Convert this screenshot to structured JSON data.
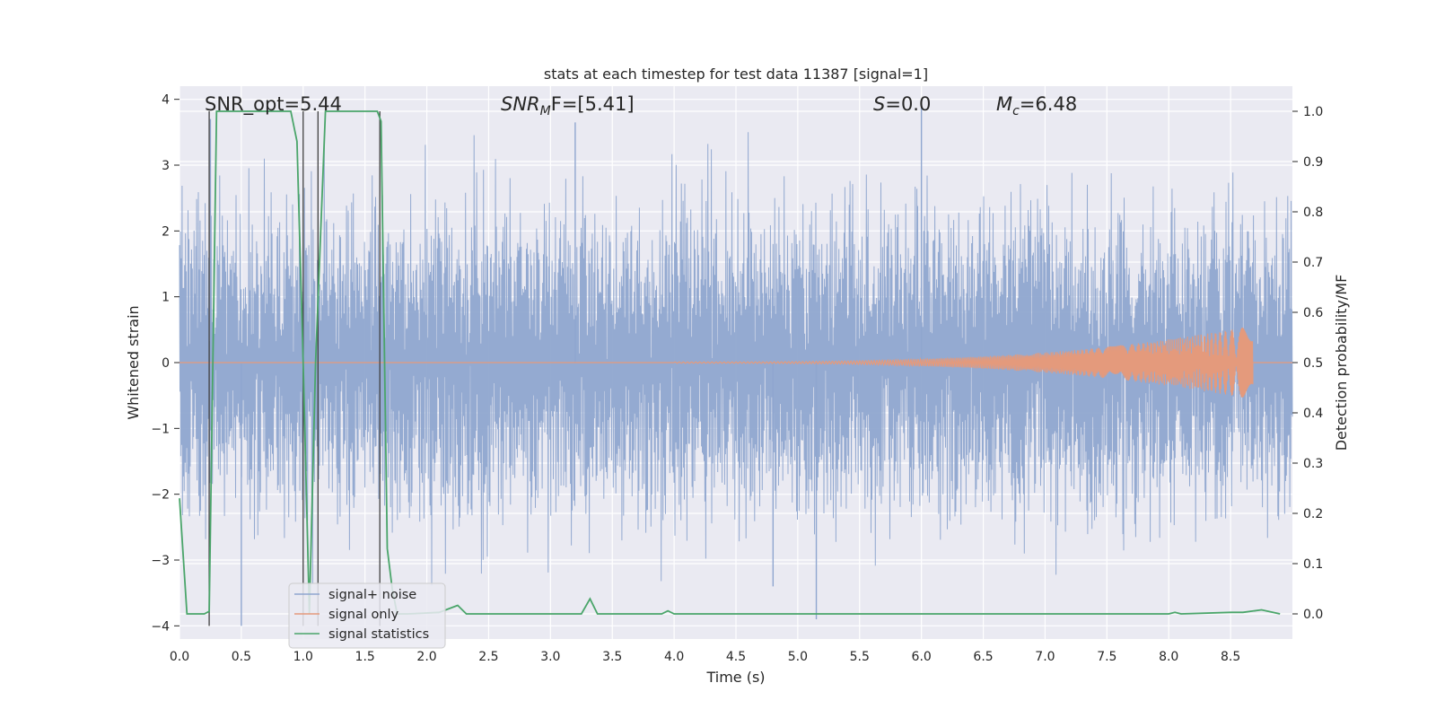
{
  "chart_data": {
    "type": "line",
    "title": "stats at each timestep for test data 11387 [signal=1]",
    "xlabel": "Time (s)",
    "ylabel": "Whitened strain",
    "y2label": "Detection probability/MF",
    "xlim": [
      0.0,
      9.0
    ],
    "ylim": [
      -4.2,
      4.2
    ],
    "y2lim": [
      -0.05,
      1.05
    ],
    "xticks": [
      0.0,
      0.5,
      1.0,
      1.5,
      2.0,
      2.5,
      3.0,
      3.5,
      4.0,
      4.5,
      5.0,
      5.5,
      6.0,
      6.5,
      7.0,
      7.5,
      8.0,
      8.5
    ],
    "xtick_labels": [
      "0.0",
      "0.5",
      "1.0",
      "1.5",
      "2.0",
      "2.5",
      "3.0",
      "3.5",
      "4.0",
      "4.5",
      "5.0",
      "5.5",
      "6.0",
      "6.5",
      "7.0",
      "7.5",
      "8.0",
      "8.5"
    ],
    "yticks": [
      -4,
      -3,
      -2,
      -1,
      0,
      1,
      2,
      3,
      4
    ],
    "ytick_labels": [
      "−4",
      "−3",
      "−2",
      "−1",
      "0",
      "1",
      "2",
      "3",
      "4"
    ],
    "y2ticks": [
      0.0,
      0.1,
      0.2,
      0.3,
      0.4,
      0.5,
      0.6,
      0.7,
      0.8,
      0.9,
      1.0
    ],
    "y2tick_labels": [
      "0.0",
      "0.1",
      "0.2",
      "0.3",
      "0.4",
      "0.5",
      "0.6",
      "0.7",
      "0.8",
      "0.9",
      "1.0"
    ],
    "grid": true,
    "legend_position": "lower-left",
    "annotations": {
      "snr_opt": "SNR_opt=5.44",
      "snr_mf_main": "SNR",
      "snr_mf_sub": "M",
      "snr_mf_tail": "F=[5.41]",
      "s_main": "S",
      "s_tail": "=0.0",
      "mc_main": "M",
      "mc_sub": "c",
      "mc_tail": "=6.48"
    },
    "series": [
      {
        "name": "signal+ noise",
        "color": "#8fa6cf",
        "axis": "left",
        "description_envelope": {
          "typical_amplitude": 1.5,
          "peaks": [
            [
              0.25,
              3.7
            ],
            [
              3.2,
              3.65
            ],
            [
              6.0,
              3.9
            ],
            [
              4.8,
              -3.4
            ],
            [
              5.15,
              -3.9
            ],
            [
              0.5,
              -4.0
            ]
          ]
        }
      },
      {
        "name": "signal only",
        "color": "#e49a7c",
        "axis": "left",
        "chirp": {
          "start": 4.0,
          "end": 8.68,
          "max_amplitude": 0.55
        }
      },
      {
        "name": "signal statistics",
        "color": "#4aa56a",
        "axis": "right",
        "x": [
          0.0,
          0.06,
          0.2,
          0.24,
          0.3,
          0.9,
          0.95,
          1.0,
          1.05,
          1.1,
          1.18,
          1.6,
          1.63,
          1.68,
          1.72,
          1.76,
          1.8,
          1.85,
          2.1,
          2.25,
          2.32,
          3.25,
          3.32,
          3.38,
          3.9,
          3.95,
          4.0,
          8.0,
          8.05,
          8.1,
          8.5,
          8.6,
          8.75,
          8.9
        ],
        "values": [
          0.23,
          0.0,
          0.0,
          0.005,
          1.0,
          1.0,
          0.94,
          0.5,
          0.0,
          0.5,
          1.0,
          1.0,
          0.98,
          0.13,
          0.05,
          0.0,
          0.0,
          0.0,
          0.003,
          0.017,
          0.0,
          0.0,
          0.03,
          0.0,
          0.0,
          0.006,
          0.0,
          0.0,
          0.003,
          0.0,
          0.003,
          0.003,
          0.008,
          0.0
        ]
      }
    ],
    "markers": {
      "name": "vertical markers",
      "color": "#404040",
      "x": [
        0.24,
        1.0,
        1.12,
        1.62
      ]
    }
  }
}
